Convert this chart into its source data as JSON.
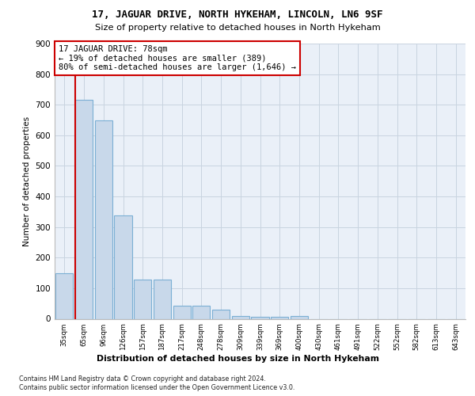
{
  "title1": "17, JAGUAR DRIVE, NORTH HYKEHAM, LINCOLN, LN6 9SF",
  "title2": "Size of property relative to detached houses in North Hykeham",
  "xlabel": "Distribution of detached houses by size in North Hykeham",
  "ylabel": "Number of detached properties",
  "categories": [
    "35sqm",
    "65sqm",
    "96sqm",
    "126sqm",
    "157sqm",
    "187sqm",
    "217sqm",
    "248sqm",
    "278sqm",
    "309sqm",
    "339sqm",
    "369sqm",
    "400sqm",
    "430sqm",
    "461sqm",
    "491sqm",
    "522sqm",
    "552sqm",
    "582sqm",
    "613sqm",
    "643sqm"
  ],
  "values": [
    150,
    715,
    650,
    338,
    128,
    128,
    42,
    42,
    30,
    10,
    7,
    7,
    10,
    0,
    0,
    0,
    0,
    0,
    0,
    0,
    0
  ],
  "bar_color": "#c8d8ea",
  "bar_edge_color": "#7bafd4",
  "marker_line_color": "#cc0000",
  "annotation_text": "17 JAGUAR DRIVE: 78sqm\n← 19% of detached houses are smaller (389)\n80% of semi-detached houses are larger (1,646) →",
  "annotation_box_color": "#ffffff",
  "annotation_box_edge_color": "#cc0000",
  "ylim": [
    0,
    900
  ],
  "yticks": [
    0,
    100,
    200,
    300,
    400,
    500,
    600,
    700,
    800,
    900
  ],
  "grid_color": "#c8d4e0",
  "background_color": "#eaf0f8",
  "footer1": "Contains HM Land Registry data © Crown copyright and database right 2024.",
  "footer2": "Contains public sector information licensed under the Open Government Licence v3.0."
}
